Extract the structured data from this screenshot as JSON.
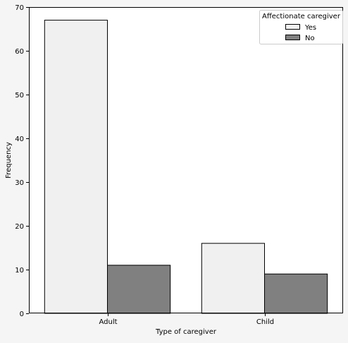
{
  "chart_data": {
    "type": "bar",
    "title": "",
    "xlabel": "Type of caregiver",
    "ylabel": "Frequency",
    "categories": [
      "Adult",
      "Child"
    ],
    "ylim": [
      0,
      70
    ],
    "yticks": [
      0,
      10,
      20,
      30,
      40,
      50,
      60,
      70
    ],
    "grid": false,
    "legend": {
      "title": "Affectionate caregiver",
      "placement": "top-right"
    },
    "series": [
      {
        "name": "Yes",
        "values": [
          67,
          16
        ],
        "color": "#f0f0f0"
      },
      {
        "name": "No",
        "values": [
          11,
          9
        ],
        "color": "#808080"
      }
    ]
  }
}
